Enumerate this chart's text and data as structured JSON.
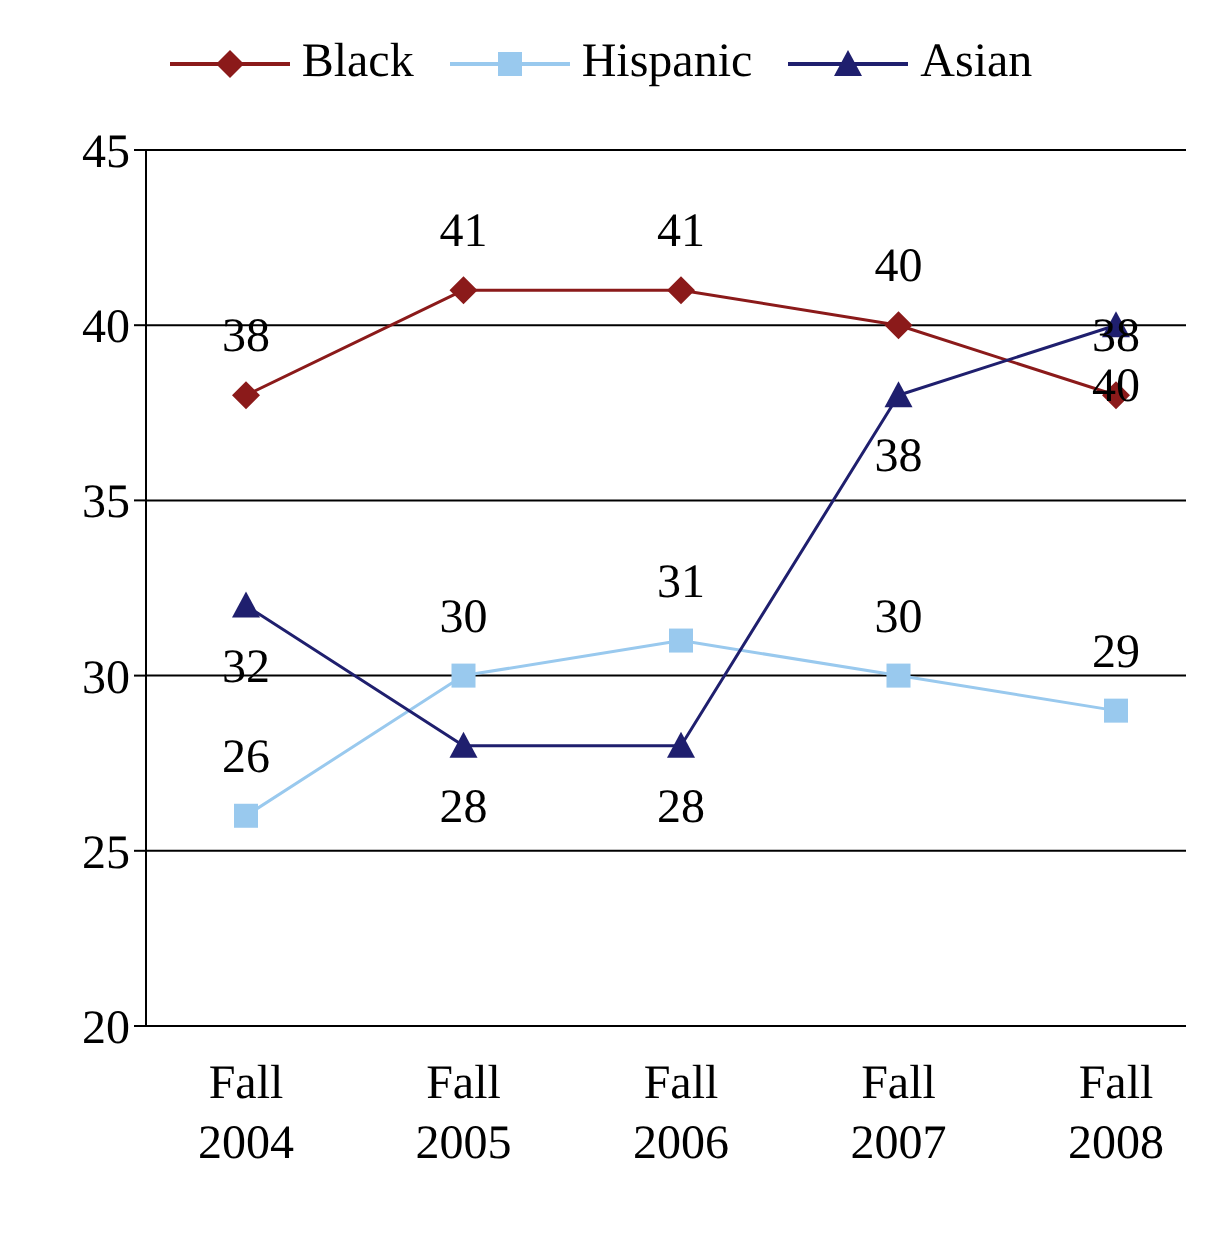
{
  "chart_data": {
    "type": "line",
    "categories": [
      "Fall 2004",
      "Fall 2005",
      "Fall 2006",
      "Fall 2007",
      "Fall 2008"
    ],
    "series": [
      {
        "name": "Black",
        "color": "#8b1a1a",
        "marker": "diamond",
        "values": [
          38,
          41,
          41,
          40,
          38
        ]
      },
      {
        "name": "Hispanic",
        "color": "#99c9ee",
        "marker": "square",
        "values": [
          26,
          30,
          31,
          30,
          29
        ]
      },
      {
        "name": "Asian",
        "color": "#1f1f6e",
        "marker": "triangle",
        "values": [
          32,
          28,
          28,
          38,
          40
        ]
      }
    ],
    "ylim": [
      20,
      45
    ],
    "yticks": [
      20,
      25,
      30,
      35,
      40,
      45
    ],
    "grid": "y",
    "legend": "top",
    "data_labels": true
  }
}
